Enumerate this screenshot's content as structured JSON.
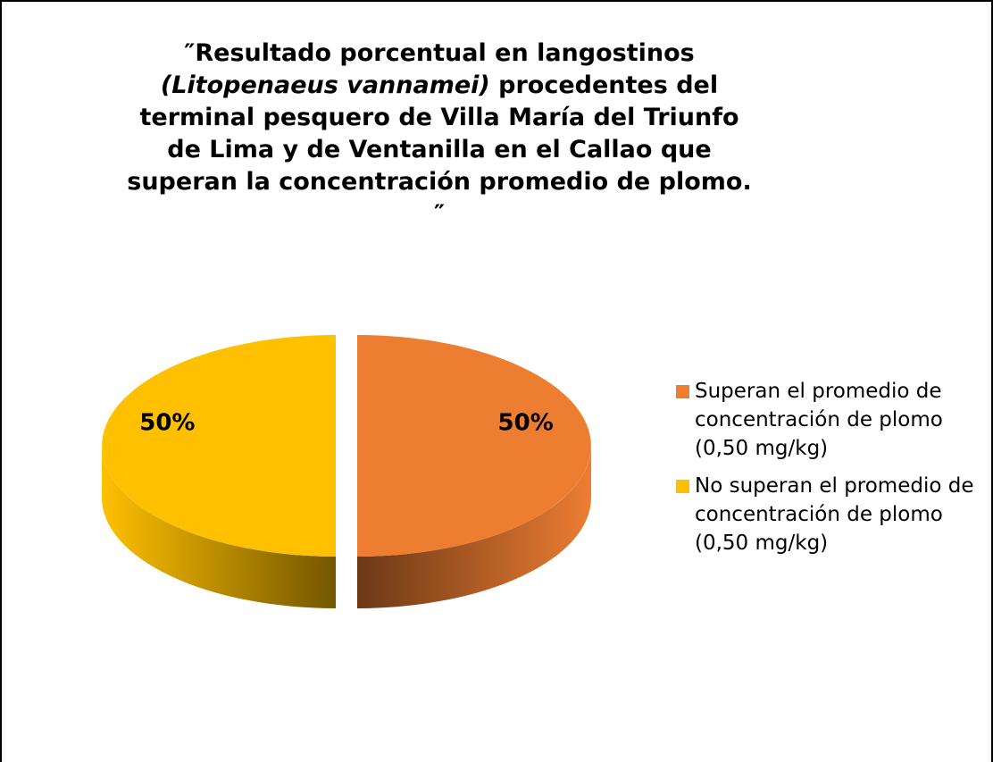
{
  "chart_data": {
    "type": "pie",
    "title": [
      {
        "text": "″Resultado porcentual en langostinos ",
        "italic": false
      },
      {
        "text": "(Litopenaeus vannamei)",
        "italic": true
      },
      {
        "text": "  procedentes del terminal pesquero de Villa María del Triunfo de Lima  y de Ventanilla en el Callao que superan la concentración promedio de plomo",
        "italic": false
      },
      {
        "text": ". ″",
        "italic": false
      }
    ],
    "categories": [
      "Superan el promedio de concentración de plomo (0,50 mg/kg)",
      "No superan el promedio de concentración de plomo (0,50 mg/kg)"
    ],
    "values": [
      50,
      50
    ],
    "value_labels": [
      "50%",
      "50%"
    ],
    "colors": [
      "#ED7D31",
      "#FFC000"
    ],
    "legend": "right"
  }
}
